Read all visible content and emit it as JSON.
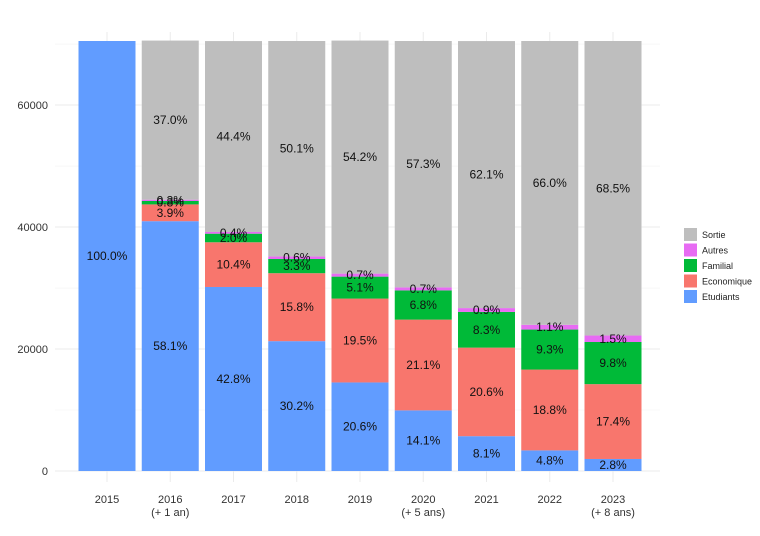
{
  "chart_data": {
    "type": "bar",
    "stacked": true,
    "categories": [
      "2015",
      "2016",
      "2017",
      "2018",
      "2019",
      "2020",
      "2021",
      "2022",
      "2023"
    ],
    "category_sublabels": [
      "",
      "(+ 1 an)",
      "",
      "",
      "",
      "(+ 5 ans)",
      "",
      "",
      "(+ 8 ans)"
    ],
    "ylim": [
      0,
      70500
    ],
    "yticks": [
      0,
      20000,
      40000,
      60000
    ],
    "grid": true,
    "legend_position": "right",
    "series": [
      {
        "name": "Etudiants",
        "color": "#619CFF",
        "values": [
          70500,
          40960,
          30170,
          21290,
          14520,
          9940,
          5710,
          3380,
          1970
        ],
        "labels": [
          "100.0%",
          "58.1%",
          "42.8%",
          "30.2%",
          "20.6%",
          "14.1%",
          "8.1%",
          "4.8%",
          "2.8%"
        ]
      },
      {
        "name": "Economique",
        "color": "#F8766D",
        "values": [
          0,
          2750,
          7330,
          11140,
          13750,
          14880,
          14520,
          13250,
          12270
        ],
        "labels": [
          "",
          "3.9%",
          "10.4%",
          "15.8%",
          "19.5%",
          "21.1%",
          "20.6%",
          "18.8%",
          "17.4%"
        ]
      },
      {
        "name": "Familial",
        "color": "#00BA38",
        "values": [
          0,
          560,
          1410,
          2330,
          3600,
          4790,
          5850,
          6560,
          6910
        ],
        "labels": [
          "",
          "0.8%",
          "2.0%",
          "3.3%",
          "5.1%",
          "6.8%",
          "8.3%",
          "9.3%",
          "9.8%"
        ]
      },
      {
        "name": "Autres",
        "color": "#E76BF3",
        "values": [
          0,
          210,
          280,
          420,
          490,
          490,
          630,
          780,
          1060
        ],
        "labels": [
          "",
          "0.3%",
          "0.4%",
          "0.6%",
          "0.7%",
          "0.7%",
          "0.9%",
          "1.1%",
          "1.5%"
        ]
      },
      {
        "name": "Sortie",
        "color": "#BEBEBE",
        "values": [
          0,
          26090,
          31300,
          35320,
          38210,
          40400,
          43780,
          46530,
          48290
        ],
        "labels": [
          "",
          "37.0%",
          "44.4%",
          "50.1%",
          "54.2%",
          "57.3%",
          "62.1%",
          "66.0%",
          "68.5%"
        ]
      }
    ],
    "legend_order": [
      "Sortie",
      "Autres",
      "Familial",
      "Economique",
      "Etudiants"
    ]
  }
}
